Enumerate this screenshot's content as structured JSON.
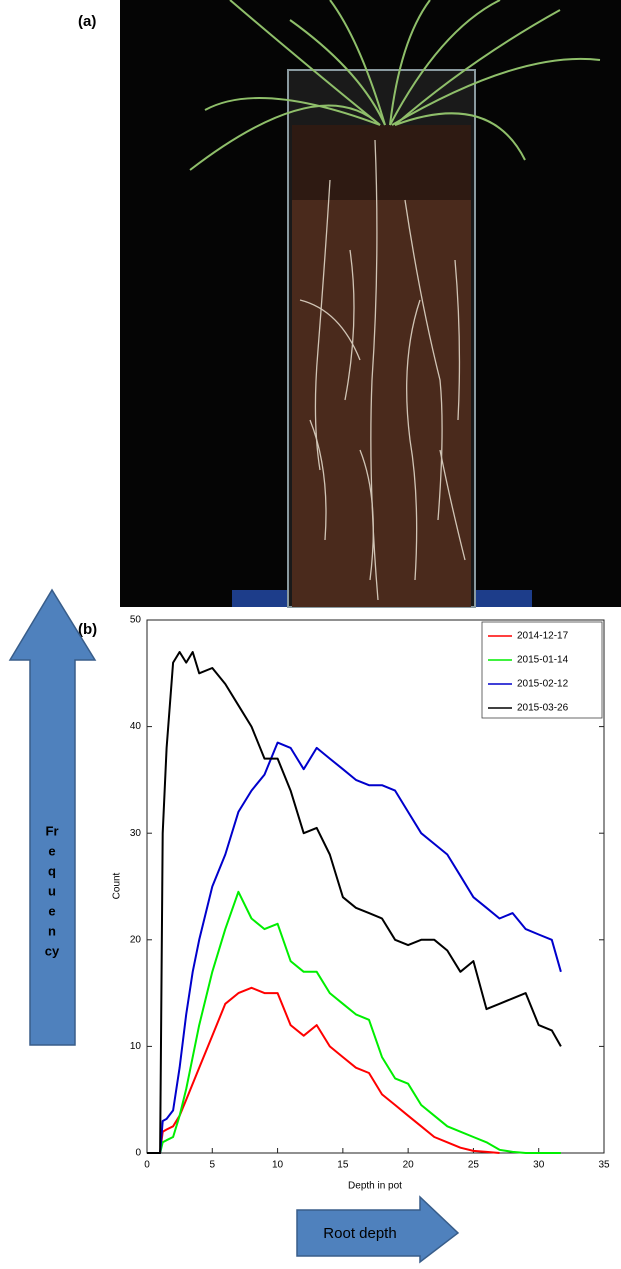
{
  "panel_labels": [
    "(a)",
    "(b)"
  ],
  "frequency_arrow": {
    "lines": [
      "Fr",
      "e",
      "q",
      "u",
      "e",
      "n",
      "cy"
    ]
  },
  "root_depth_arrow": {
    "label": "Root depth"
  },
  "chart_data": {
    "type": "line",
    "xlabel": "Depth in pot",
    "ylabel": "Count",
    "x": [
      0,
      1,
      1.2,
      1.5,
      2,
      2.5,
      3,
      3.5,
      4,
      5,
      6,
      7,
      8,
      9,
      10,
      11,
      12,
      13,
      14,
      15,
      16,
      17,
      18,
      19,
      20,
      21,
      22,
      23,
      24,
      25,
      26,
      27,
      28,
      29,
      30,
      31,
      31.7
    ],
    "series": [
      {
        "name": "2014-12-17",
        "color": "#ff0000",
        "values": [
          0,
          0,
          2,
          2.2,
          2.5,
          3.5,
          5,
          6.5,
          8,
          11,
          14,
          15,
          15.5,
          15,
          15,
          12,
          11,
          12,
          10,
          9,
          8,
          7.5,
          5.5,
          4.5,
          3.5,
          2.5,
          1.5,
          1,
          0.5,
          0.2,
          0.1,
          0,
          null,
          null,
          null,
          null,
          null
        ]
      },
      {
        "name": "2015-01-14",
        "color": "#00ee00",
        "values": [
          0,
          0,
          1,
          1.2,
          1.5,
          3.5,
          6,
          9,
          12,
          17,
          21,
          24.5,
          22,
          21,
          21.5,
          18,
          17,
          17,
          15,
          14,
          13,
          12.5,
          9,
          7,
          6.5,
          4.5,
          3.5,
          2.5,
          2,
          1.5,
          1,
          0.3,
          0.1,
          0,
          0,
          0,
          0
        ]
      },
      {
        "name": "2015-02-12",
        "color": "#0000cc",
        "values": [
          0,
          0,
          3,
          3.2,
          4,
          8,
          13,
          17,
          20,
          25,
          28,
          32,
          34,
          35.5,
          38.5,
          38,
          36,
          38,
          37,
          36,
          35,
          34.5,
          34.5,
          34,
          32,
          30,
          29,
          28,
          26,
          24,
          23,
          22,
          22.5,
          21,
          20.5,
          20,
          17
        ]
      },
      {
        "name": "2015-03-26",
        "color": "#000000",
        "values": [
          0,
          0,
          30,
          38,
          46,
          47,
          46,
          47,
          45,
          45.5,
          44,
          42,
          40,
          37,
          37,
          34,
          30,
          30.5,
          28,
          24,
          23,
          22.5,
          22,
          20,
          19.5,
          20,
          20,
          19,
          17,
          18,
          13.5,
          14,
          14.5,
          15,
          12,
          11.5,
          10
        ]
      }
    ],
    "xlim": [
      0,
      35
    ],
    "xticks": [
      0,
      5,
      10,
      15,
      20,
      25,
      30,
      35
    ],
    "ylim": [
      0,
      50
    ],
    "yticks": [
      0,
      10,
      20,
      30,
      40,
      50
    ],
    "grid": false,
    "legend": "upper right"
  }
}
